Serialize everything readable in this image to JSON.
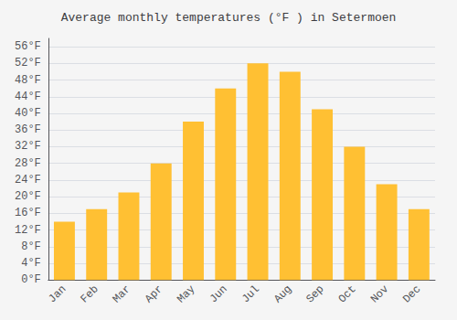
{
  "chart_data": {
    "type": "bar",
    "title": "Average monthly temperatures (°F ) in Setermoen",
    "categories": [
      "Jan",
      "Feb",
      "Mar",
      "Apr",
      "May",
      "Jun",
      "Jul",
      "Aug",
      "Sep",
      "Oct",
      "Nov",
      "Dec"
    ],
    "values": [
      14,
      17,
      21,
      28,
      38,
      46,
      52,
      50,
      41,
      32,
      23,
      17
    ],
    "color": "#FFC033",
    "ylim": [
      0,
      58
    ],
    "yticks": [
      {
        "value": 0,
        "label": "0°F"
      },
      {
        "value": 4,
        "label": "4°F"
      },
      {
        "value": 8,
        "label": "8°F"
      },
      {
        "value": 12,
        "label": "12°F"
      },
      {
        "value": 16,
        "label": "16°F"
      },
      {
        "value": 20,
        "label": "20°F"
      },
      {
        "value": 24,
        "label": "24°F"
      },
      {
        "value": 28,
        "label": "28°F"
      },
      {
        "value": 32,
        "label": "32°F"
      },
      {
        "value": 36,
        "label": "36°F"
      },
      {
        "value": 40,
        "label": "40°F"
      },
      {
        "value": 44,
        "label": "44°F"
      },
      {
        "value": 48,
        "label": "48°F"
      },
      {
        "value": 52,
        "label": "52°F"
      },
      {
        "value": 56,
        "label": "56°F"
      }
    ],
    "grid": true
  }
}
